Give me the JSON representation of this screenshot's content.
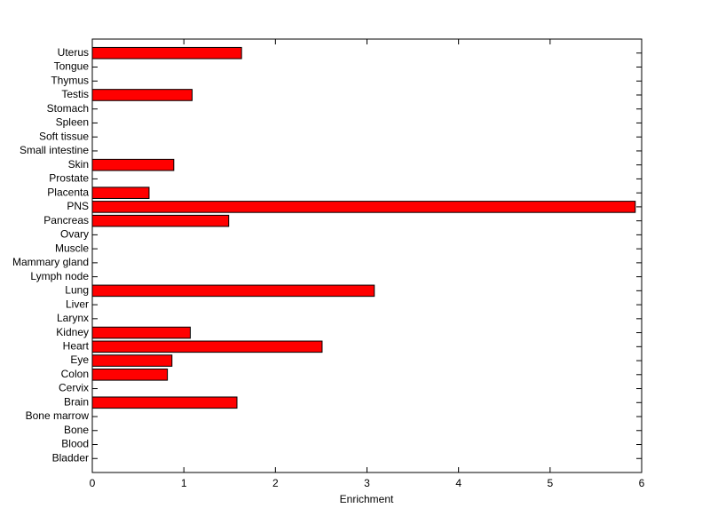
{
  "chart_data": {
    "type": "barh",
    "xlabel": "Enrichment",
    "categories": [
      "Bladder",
      "Blood",
      "Bone",
      "Bone marrow",
      "Brain",
      "Cervix",
      "Colon",
      "Eye",
      "Heart",
      "Kidney",
      "Larynx",
      "Liver",
      "Lung",
      "Lymph node",
      "Mammary gland",
      "Muscle",
      "Ovary",
      "Pancreas",
      "PNS",
      "Placenta",
      "Prostate",
      "Skin",
      "Small intestine",
      "Soft tissue",
      "Spleen",
      "Stomach",
      "Testis",
      "Thymus",
      "Tongue",
      "Uterus"
    ],
    "values": [
      0,
      0,
      0,
      0,
      1.58,
      0,
      0.82,
      0.87,
      2.51,
      1.07,
      0,
      0,
      3.08,
      0,
      0,
      0,
      0,
      1.49,
      5.93,
      0.62,
      0,
      0.89,
      0,
      0,
      0,
      0,
      1.09,
      0,
      0,
      1.63
    ],
    "color": "#ff0000",
    "xlim": [
      0,
      6
    ],
    "xticks": [
      0,
      1,
      2,
      3,
      4,
      5,
      6
    ]
  }
}
